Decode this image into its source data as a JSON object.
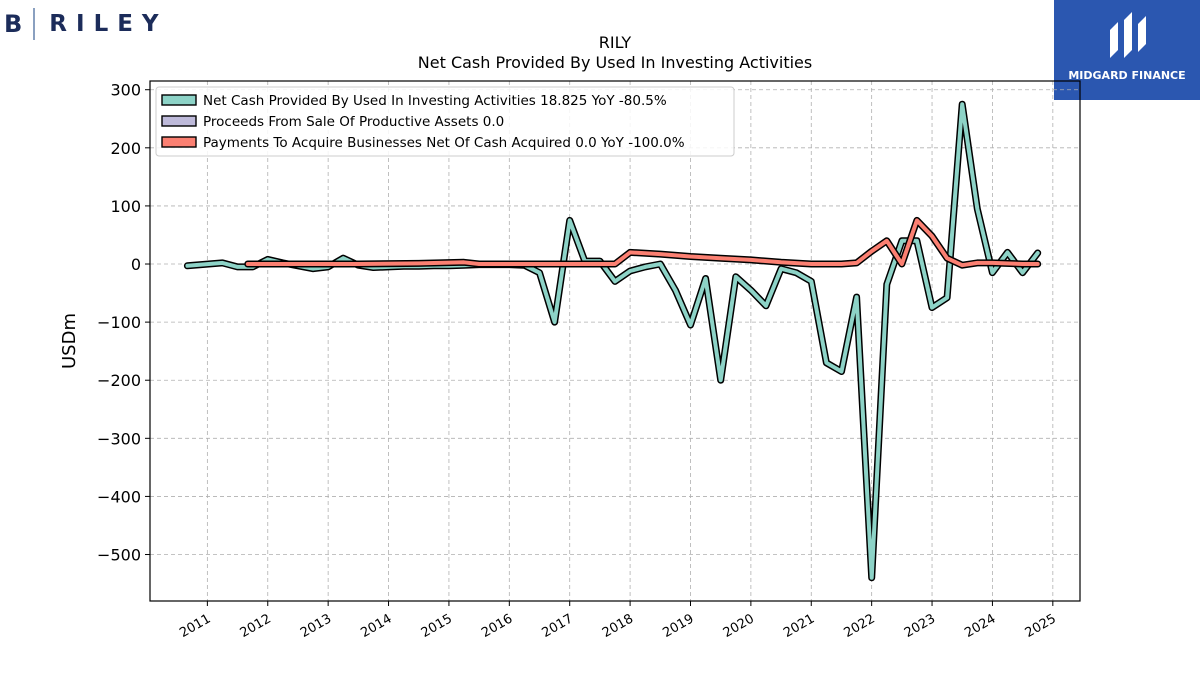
{
  "brand": {
    "left_logo_letter": "B",
    "left_logo_name": "RILEY",
    "right_logo_name": "MIDGARD FINANCE",
    "logo_color": "#1c2c5a",
    "partner_color": "#2b57b0"
  },
  "chart_data": {
    "type": "line",
    "title": "RILY",
    "subtitle": "Net Cash Provided By Used In Investing Activities",
    "ylabel": "USDm",
    "xlabel": "",
    "ylim": [
      -580,
      315
    ],
    "xlim": [
      2010.05,
      2025.45
    ],
    "yticks": [
      300,
      200,
      100,
      0,
      -100,
      -200,
      -300,
      -400,
      -500
    ],
    "ytick_labels": [
      "300",
      "200",
      "100",
      "0",
      "−100",
      "−200",
      "−300",
      "−400",
      "−500"
    ],
    "xticks": [
      2011,
      2012,
      2013,
      2014,
      2015,
      2016,
      2017,
      2018,
      2019,
      2020,
      2021,
      2022,
      2023,
      2024,
      2025
    ],
    "xtick_labels": [
      "2011",
      "2012",
      "2013",
      "2014",
      "2015",
      "2016",
      "2017",
      "2018",
      "2019",
      "2020",
      "2021",
      "2022",
      "2023",
      "2024",
      "2025"
    ],
    "grid": true,
    "legend_position": "top-left",
    "series": [
      {
        "name": "Net Cash Provided By Used In Investing Activities",
        "legend_label": "Net Cash Provided By Used In Investing Activities  18.825 YoY -80.5%",
        "color": "#8dd3c7",
        "x": [
          2010.67,
          2011.25,
          2011.5,
          2011.75,
          2012.0,
          2012.25,
          2012.5,
          2012.75,
          2013.0,
          2013.25,
          2013.5,
          2013.75,
          2014.0,
          2014.25,
          2014.5,
          2014.75,
          2015.0,
          2015.25,
          2015.5,
          2015.75,
          2016.0,
          2016.25,
          2016.5,
          2016.75,
          2017.0,
          2017.25,
          2017.5,
          2017.75,
          2018.0,
          2018.25,
          2018.5,
          2018.75,
          2019.0,
          2019.25,
          2019.5,
          2019.75,
          2020.0,
          2020.25,
          2020.5,
          2020.75,
          2021.0,
          2021.25,
          2021.5,
          2021.75,
          2022.0,
          2022.25,
          2022.5,
          2022.75,
          2023.0,
          2023.25,
          2023.5,
          2023.75,
          2024.0,
          2024.25,
          2024.5,
          2024.75
        ],
        "y": [
          -3,
          2,
          -5,
          -5,
          8,
          2,
          -3,
          -8,
          -5,
          10,
          -2,
          -6,
          -5,
          -4,
          -4,
          -3,
          -3,
          -2,
          -1,
          -1,
          -1,
          -2,
          -15,
          -100,
          75,
          5,
          5,
          -30,
          -12,
          -5,
          0,
          -45,
          -105,
          -25,
          -200,
          -22,
          -45,
          -72,
          -8,
          -15,
          -30,
          -170,
          -185,
          -57,
          -540,
          -35,
          40,
          40,
          -75,
          -58,
          275,
          95,
          -15,
          20,
          -15,
          19
        ]
      },
      {
        "name": "Proceeds From Sale Of Productive Assets",
        "legend_label": "Proceeds From Sale Of Productive Assets  0.0",
        "color": "#bebada",
        "x": [],
        "y": []
      },
      {
        "name": "Payments To Acquire Businesses Net Of Cash Acquired",
        "legend_label": "Payments To Acquire Businesses Net Of Cash Acquired  0.0 YoY -100.0%",
        "color": "#fb8072",
        "x": [
          2011.67,
          2012.5,
          2013.5,
          2014.5,
          2015.25,
          2015.5,
          2016.5,
          2017.5,
          2017.75,
          2018.0,
          2018.5,
          2019.0,
          2019.5,
          2020.0,
          2020.5,
          2021.0,
          2021.5,
          2021.75,
          2022.0,
          2022.25,
          2022.5,
          2022.75,
          2023.0,
          2023.25,
          2023.5,
          2023.75,
          2024.0,
          2024.5,
          2024.75
        ],
        "y": [
          0,
          0,
          0,
          1,
          3,
          0,
          0,
          0,
          0,
          20,
          17,
          13,
          10,
          7,
          3,
          0,
          0,
          2,
          22,
          40,
          0,
          75,
          48,
          10,
          -2,
          2,
          2,
          0,
          0
        ]
      }
    ]
  }
}
